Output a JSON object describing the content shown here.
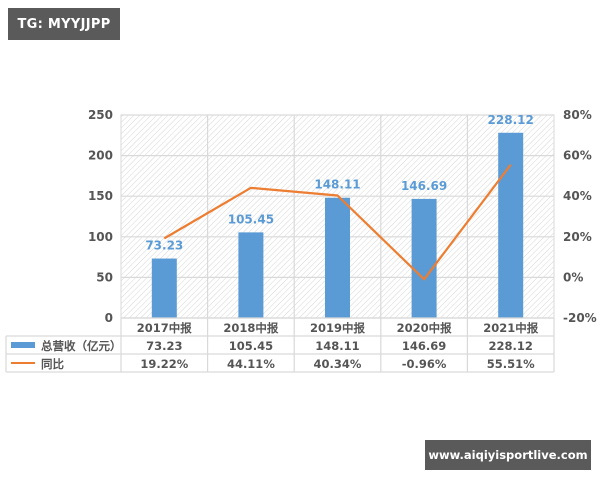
{
  "tag": {
    "label": "TG: MYYJJPP"
  },
  "watermark": {
    "label": "www.aiqiyisportlive.com"
  },
  "chart_data": {
    "type": "bar+line",
    "title": "",
    "categories": [
      "2017中报",
      "2018中报",
      "2019中报",
      "2020中报",
      "2021中报"
    ],
    "series": [
      {
        "name": "总营收（亿元）",
        "type": "bar",
        "axis": "left",
        "color": "#5b9bd5",
        "values": [
          73.23,
          105.45,
          148.11,
          146.69,
          228.12
        ],
        "labels": [
          "73.23",
          "105.45",
          "148.11",
          "146.69",
          "228.12"
        ]
      },
      {
        "name": "同比",
        "type": "line",
        "axis": "right",
        "color": "#ed7d31",
        "values": [
          19.22,
          44.11,
          40.34,
          -0.96,
          55.51
        ],
        "labels": [
          "19.22%",
          "44.11%",
          "40.34%",
          "-0.96%",
          "55.51%"
        ]
      }
    ],
    "left_axis": {
      "ylim": [
        0,
        250
      ],
      "ticks": [
        "0",
        "50",
        "100",
        "150",
        "200",
        "250"
      ]
    },
    "right_axis": {
      "ylim": [
        -20,
        80
      ],
      "ticks": [
        "-20%",
        "0%",
        "20%",
        "40%",
        "60%",
        "80%"
      ]
    },
    "grid": true,
    "legend_position": "data-table",
    "data_table": {
      "header": [
        "2017中报",
        "2018中报",
        "2019中报",
        "2020中报",
        "2021中报"
      ],
      "rows": [
        {
          "legend": "总营收（亿元）",
          "values": [
            "73.23",
            "105.45",
            "148.11",
            "146.69",
            "228.12"
          ]
        },
        {
          "legend": "同比",
          "values": [
            "19.22%",
            "44.11%",
            "40.34%",
            "-0.96%",
            "55.51%"
          ]
        }
      ]
    }
  }
}
